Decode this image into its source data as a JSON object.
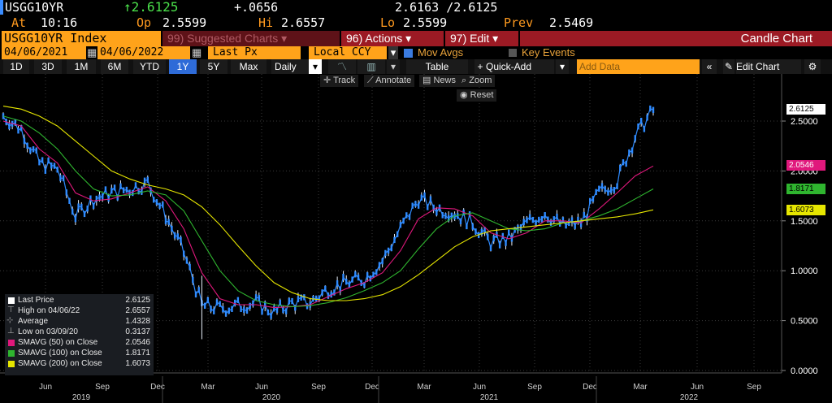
{
  "quote": {
    "ticker": "USGG10YR",
    "last": "↑2.6125",
    "change": "+.0656",
    "bid_ask": "2.6163 /2.6125",
    "time_label": "At",
    "time": "10:16",
    "open_label": "Op",
    "open": "2.5599",
    "high_label": "Hi",
    "high": "2.6557",
    "low_label": "Lo",
    "low": "2.5599",
    "prev_label": "Prev",
    "prev": "2.5469"
  },
  "toolbar": {
    "security": "USGG10YR Index",
    "suggested": "99) Suggested Charts ▾",
    "actions": "96) Actions ▾",
    "edit": "97) Edit ▾",
    "chart_type": "Candle Chart",
    "start_date": "04/06/2021",
    "end_date": "04/06/2022",
    "field": "Last Px",
    "currency": "Local CCY",
    "mov_avgs": "Mov Avgs",
    "key_events": "Key Events",
    "periods": [
      "1D",
      "3D",
      "1M",
      "6M",
      "YTD",
      "1Y",
      "5Y",
      "Max"
    ],
    "selected_period": "1Y",
    "frequency": "Daily",
    "table": "Table",
    "quick_add": "Quick-Add",
    "add_data_placeholder": "Add Data",
    "edit_chart": "Edit Chart",
    "track": "Track",
    "annotate": "Annotate",
    "news": "News",
    "zoom": "Zoom",
    "reset": "Reset"
  },
  "colors": {
    "price": "#2f8bff",
    "sma50": "#e0187c",
    "sma100": "#2fb52f",
    "sma200": "#e6e600",
    "accent_orange": "#ffa31a",
    "bar_red": "#9c1a24"
  },
  "legend": [
    {
      "name": "Last Price",
      "value": "2.6125",
      "color": "#ffffff",
      "icon": "square-icon"
    },
    {
      "name": "High on 04/06/22",
      "value": "2.6557",
      "color": "#9aa",
      "icon": "high-marker-icon"
    },
    {
      "name": "Average",
      "value": "1.4328",
      "color": "#9aa",
      "icon": "average-line-icon"
    },
    {
      "name": "Low on 03/09/20",
      "value": "0.3137",
      "color": "#9aa",
      "icon": "low-marker-icon"
    },
    {
      "name": "SMAVG (50)  on Close",
      "value": "2.0546",
      "color": "#e0187c",
      "icon": "square-icon"
    },
    {
      "name": "SMAVG (100)  on Close",
      "value": "1.8171",
      "color": "#2fb52f",
      "icon": "square-icon"
    },
    {
      "name": "SMAVG (200)  on Close",
      "value": "1.6073",
      "color": "#e6e600",
      "icon": "square-icon"
    }
  ],
  "chart_data": {
    "type": "line",
    "ylim": [
      0,
      2.8
    ],
    "y_ticks": [
      "2.5000",
      "2.0000",
      "1.5000",
      "1.0000",
      "0.5000",
      "0.0000"
    ],
    "y_tick_values": [
      2.5,
      2.0,
      1.5,
      1.0,
      0.5,
      0.0
    ],
    "x_months": [
      "Jun",
      "Sep",
      "Dec",
      "Mar",
      "Jun",
      "Sep",
      "Dec",
      "Mar",
      "Jun",
      "Sep",
      "Dec",
      "Mar",
      "Jun",
      "Sep"
    ],
    "x_years": [
      "2019",
      "2020",
      "2021",
      "2022"
    ],
    "x": [
      "2019-04",
      "2019-05",
      "2019-06",
      "2019-07",
      "2019-08",
      "2019-09",
      "2019-10",
      "2019-11",
      "2019-12",
      "2020-01",
      "2020-02",
      "2020-03",
      "2020-04",
      "2020-05",
      "2020-06",
      "2020-07",
      "2020-08",
      "2020-09",
      "2020-10",
      "2020-11",
      "2020-12",
      "2021-01",
      "2021-02",
      "2021-03",
      "2021-04",
      "2021-05",
      "2021-06",
      "2021-07",
      "2021-08",
      "2021-09",
      "2021-10",
      "2021-11",
      "2021-12",
      "2022-01",
      "2022-02",
      "2022-03",
      "2022-04"
    ],
    "series": [
      {
        "name": "Last Price",
        "values": [
          2.55,
          2.42,
          2.08,
          2.02,
          1.55,
          1.72,
          1.78,
          1.82,
          1.88,
          1.55,
          1.18,
          0.65,
          0.62,
          0.65,
          0.68,
          0.58,
          0.68,
          0.68,
          0.82,
          0.88,
          0.92,
          1.1,
          1.42,
          1.72,
          1.63,
          1.58,
          1.48,
          1.28,
          1.32,
          1.48,
          1.58,
          1.45,
          1.48,
          1.78,
          1.9,
          2.35,
          2.61
        ]
      },
      {
        "name": "SMAVG (50)",
        "values": [
          2.5,
          2.45,
          2.22,
          2.08,
          1.78,
          1.7,
          1.72,
          1.78,
          1.84,
          1.7,
          1.42,
          0.98,
          0.72,
          0.66,
          0.66,
          0.63,
          0.64,
          0.66,
          0.74,
          0.82,
          0.88,
          0.98,
          1.2,
          1.52,
          1.63,
          1.62,
          1.55,
          1.38,
          1.32,
          1.38,
          1.5,
          1.5,
          1.48,
          1.62,
          1.78,
          1.95,
          2.05
        ]
      },
      {
        "name": "SMAVG (100)",
        "values": [
          2.55,
          2.5,
          2.38,
          2.22,
          2.0,
          1.82,
          1.75,
          1.76,
          1.8,
          1.76,
          1.6,
          1.3,
          1.0,
          0.8,
          0.7,
          0.66,
          0.64,
          0.65,
          0.68,
          0.73,
          0.8,
          0.88,
          1.0,
          1.22,
          1.42,
          1.55,
          1.58,
          1.5,
          1.42,
          1.4,
          1.42,
          1.48,
          1.5,
          1.55,
          1.62,
          1.72,
          1.82
        ]
      },
      {
        "name": "SMAVG (200)",
        "values": [
          2.65,
          2.62,
          2.55,
          2.45,
          2.3,
          2.15,
          2.0,
          1.92,
          1.86,
          1.82,
          1.76,
          1.64,
          1.46,
          1.25,
          1.05,
          0.88,
          0.78,
          0.72,
          0.7,
          0.7,
          0.72,
          0.76,
          0.84,
          0.96,
          1.1,
          1.24,
          1.34,
          1.4,
          1.42,
          1.44,
          1.46,
          1.48,
          1.5,
          1.52,
          1.54,
          1.57,
          1.61
        ]
      }
    ],
    "last_value_tags": [
      {
        "label": "2.6125",
        "value": 2.6125,
        "color": "#ffffff",
        "text_color": "#000000"
      },
      {
        "label": "2.0546",
        "value": 2.0546,
        "color": "#e0187c",
        "text_color": "#ffffff"
      },
      {
        "label": "1.8171",
        "value": 1.8171,
        "color": "#2fb52f",
        "text_color": "#000000"
      },
      {
        "label": "1.6073",
        "value": 1.6073,
        "color": "#e6e600",
        "text_color": "#000000"
      }
    ]
  }
}
